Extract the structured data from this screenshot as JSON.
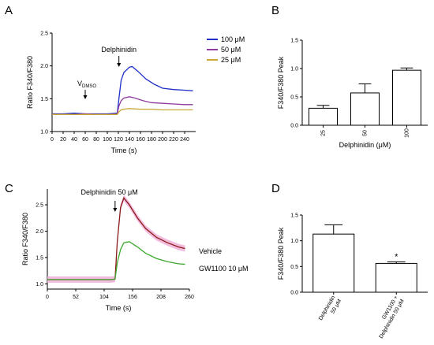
{
  "chart_data": [
    {
      "panel": "A",
      "type": "line",
      "xlabel": "Time (s)",
      "ylabel": "Ratio F340/F380",
      "xlim": [
        0,
        260
      ],
      "ylim": [
        1.0,
        2.5
      ],
      "xticks": [
        "0",
        "20",
        "40",
        "60",
        "80",
        "100",
        "120",
        "140",
        "160",
        "180",
        "200",
        "220",
        "240"
      ],
      "yticks": [
        "1.0",
        "1.5",
        "2.0",
        "2.5"
      ],
      "legend": "top-right",
      "annotations": [
        {
          "text": "Delphinidin",
          "x": 121,
          "y": 2.17
        },
        {
          "text": "V",
          "sub": "DMSO",
          "x": 60,
          "y": 1.44
        }
      ],
      "series": [
        {
          "name": "100 μM",
          "color": "#1f2fc8",
          "x": [
            0,
            20,
            40,
            60,
            80,
            100,
            118,
            121,
            125,
            130,
            140,
            145,
            155,
            170,
            185,
            200,
            220,
            240,
            255
          ],
          "y": [
            1.27,
            1.27,
            1.28,
            1.27,
            1.27,
            1.27,
            1.28,
            1.5,
            1.78,
            1.9,
            1.98,
            1.99,
            1.92,
            1.8,
            1.72,
            1.66,
            1.64,
            1.63,
            1.62
          ]
        },
        {
          "name": "50 μM",
          "color": "#8e3a9e",
          "x": [
            0,
            20,
            40,
            60,
            80,
            100,
            118,
            121,
            125,
            130,
            140,
            150,
            165,
            180,
            200,
            220,
            240,
            255
          ],
          "y": [
            1.26,
            1.26,
            1.26,
            1.27,
            1.26,
            1.26,
            1.27,
            1.39,
            1.47,
            1.51,
            1.53,
            1.51,
            1.47,
            1.44,
            1.43,
            1.42,
            1.41,
            1.41
          ]
        },
        {
          "name": "25 μM",
          "color": "#c9a838",
          "x": [
            0,
            20,
            40,
            60,
            80,
            100,
            118,
            121,
            125,
            130,
            140,
            160,
            180,
            200,
            220,
            240,
            255
          ],
          "y": [
            1.26,
            1.26,
            1.26,
            1.26,
            1.26,
            1.26,
            1.26,
            1.3,
            1.33,
            1.34,
            1.35,
            1.34,
            1.34,
            1.33,
            1.33,
            1.33,
            1.33
          ]
        }
      ]
    },
    {
      "panel": "B",
      "type": "bar",
      "xlabel": "Delphinidin (μM)",
      "ylabel": "F340/F380 Peak",
      "ylim": [
        0,
        1.5
      ],
      "yticks": [
        "0.0",
        "0.5",
        "1.0",
        "1.5"
      ],
      "categories": [
        "25",
        "50",
        "100"
      ],
      "values": [
        0.3,
        0.57,
        0.97
      ],
      "errors": [
        0.05,
        0.16,
        0.04
      ]
    },
    {
      "panel": "C",
      "type": "line",
      "xlabel": "Time (s)",
      "ylabel": "Ratio F340/F380",
      "xlim": [
        0,
        260
      ],
      "ylim": [
        0.9,
        2.8
      ],
      "xticks": [
        "0",
        "52",
        "104",
        "156",
        "208",
        "260"
      ],
      "yticks": [
        "1.0",
        "1.5",
        "2.0",
        "2.5"
      ],
      "annotations": [
        {
          "text": "Delphinidin 50 μM",
          "x": 128,
          "y": 2.67
        }
      ],
      "series": [
        {
          "name": "Vehicle",
          "color": "#8b1a1a",
          "band": "#f0b0d8",
          "x": [
            0,
            30,
            60,
            90,
            118,
            124,
            128,
            134,
            140,
            150,
            165,
            180,
            200,
            220,
            240,
            252
          ],
          "y": [
            1.08,
            1.08,
            1.08,
            1.08,
            1.08,
            1.09,
            1.8,
            2.45,
            2.63,
            2.5,
            2.25,
            2.05,
            1.88,
            1.78,
            1.7,
            1.67
          ]
        },
        {
          "name": "GW1100 10 μM",
          "color": "#3aa82b",
          "x": [
            0,
            30,
            60,
            90,
            118,
            124,
            128,
            134,
            140,
            150,
            165,
            180,
            200,
            220,
            240,
            252
          ],
          "y": [
            1.08,
            1.08,
            1.08,
            1.08,
            1.08,
            1.09,
            1.4,
            1.65,
            1.78,
            1.8,
            1.7,
            1.58,
            1.48,
            1.42,
            1.38,
            1.37
          ]
        }
      ]
    },
    {
      "panel": "D",
      "type": "bar",
      "ylabel": "F340/F380 Peak",
      "ylim": [
        0,
        1.5
      ],
      "yticks": [
        "0.0",
        "0.5",
        "1.0",
        "1.5"
      ],
      "categories": [
        [
          "Delphinidin",
          "50 μM"
        ],
        [
          "GW1100 +",
          "Delphinidin 50 μM"
        ]
      ],
      "values": [
        1.13,
        0.56
      ],
      "errors": [
        0.18,
        0.03
      ],
      "significance": [
        "",
        "*"
      ]
    }
  ]
}
